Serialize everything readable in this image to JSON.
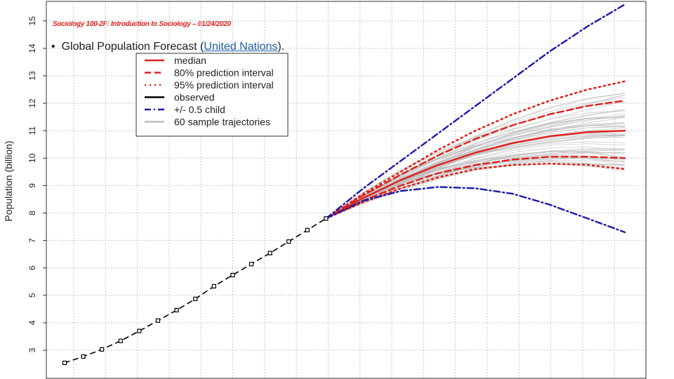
{
  "slide": {
    "header": "Sociology 100-2F: Introduction to Sociology – 01/24/2020",
    "bullet_symbol": "•",
    "bullet_text_before": "Global Population Forecast (",
    "bullet_link": "United Nations",
    "bullet_text_after": ")."
  },
  "chart_data": {
    "type": "line",
    "title": "",
    "xlabel": "",
    "ylabel": "Population (billion)",
    "ylim": [
      2.5,
      15.3
    ],
    "y_ticks": [
      3,
      4,
      5,
      6,
      7,
      8,
      9,
      10,
      11,
      12,
      13,
      14,
      15
    ],
    "x_range": [
      1950,
      2100
    ],
    "grid": true,
    "legend_position": "top-left",
    "legend": [
      {
        "label": "median",
        "color": "#e0201b",
        "style": "solid"
      },
      {
        "label": "80% prediction interval",
        "color": "#e0201b",
        "style": "dashed"
      },
      {
        "label": "95% prediction interval",
        "color": "#e0201b",
        "style": "dotted"
      },
      {
        "label": "observed",
        "color": "#000000",
        "style": "solid"
      },
      {
        "label": "+/- 0.5 child",
        "color": "#1a1aa8",
        "style": "dashdot"
      },
      {
        "label": "60 sample trajectories",
        "color": "#bbbbbb",
        "style": "solid"
      }
    ],
    "series": [
      {
        "name": "observed",
        "color": "#000000",
        "style": "dashed-markers",
        "x": [
          1950,
          1955,
          1960,
          1965,
          1970,
          1975,
          1980,
          1985,
          1990,
          1995,
          2000,
          2005,
          2010,
          2015,
          2020
        ],
        "y": [
          2.54,
          2.77,
          3.03,
          3.34,
          3.7,
          4.08,
          4.46,
          4.87,
          5.33,
          5.74,
          6.14,
          6.54,
          6.96,
          7.38,
          7.8
        ]
      },
      {
        "name": "median",
        "color": "#e0201b",
        "style": "solid",
        "x": [
          2020,
          2030,
          2040,
          2050,
          2060,
          2070,
          2080,
          2090,
          2100
        ],
        "y": [
          7.8,
          8.55,
          9.2,
          9.75,
          10.2,
          10.55,
          10.8,
          10.95,
          11.0
        ]
      },
      {
        "name": "80% upper",
        "color": "#e0201b",
        "style": "dashed",
        "x": [
          2020,
          2030,
          2040,
          2050,
          2060,
          2070,
          2080,
          2090,
          2100
        ],
        "y": [
          7.8,
          8.65,
          9.4,
          10.1,
          10.7,
          11.2,
          11.6,
          11.9,
          12.1
        ]
      },
      {
        "name": "80% lower",
        "color": "#e0201b",
        "style": "dashed",
        "x": [
          2020,
          2030,
          2040,
          2050,
          2060,
          2070,
          2080,
          2090,
          2100
        ],
        "y": [
          7.8,
          8.45,
          9.0,
          9.45,
          9.75,
          9.95,
          10.05,
          10.05,
          10.0
        ]
      },
      {
        "name": "95% upper",
        "color": "#e0201b",
        "style": "dotted",
        "x": [
          2020,
          2030,
          2040,
          2050,
          2060,
          2070,
          2080,
          2090,
          2100
        ],
        "y": [
          7.8,
          8.7,
          9.5,
          10.3,
          11.0,
          11.6,
          12.1,
          12.5,
          12.8
        ]
      },
      {
        "name": "95% lower",
        "color": "#e0201b",
        "style": "dotted",
        "x": [
          2020,
          2030,
          2040,
          2050,
          2060,
          2070,
          2080,
          2090,
          2100
        ],
        "y": [
          7.8,
          8.4,
          8.9,
          9.3,
          9.6,
          9.75,
          9.8,
          9.75,
          9.6
        ]
      },
      {
        "name": "+0.5 child",
        "color": "#1a1aa8",
        "style": "dashdot",
        "x": [
          2020,
          2030,
          2040,
          2050,
          2060,
          2070,
          2080,
          2090,
          2100
        ],
        "y": [
          7.8,
          8.9,
          9.9,
          10.9,
          11.9,
          12.9,
          13.9,
          14.8,
          15.6
        ]
      },
      {
        "name": "-0.5 child",
        "color": "#1a1aa8",
        "style": "dashdot",
        "x": [
          2020,
          2030,
          2040,
          2050,
          2060,
          2070,
          2080,
          2090,
          2100
        ],
        "y": [
          7.8,
          8.45,
          8.8,
          8.95,
          8.9,
          8.7,
          8.3,
          7.8,
          7.3
        ]
      }
    ],
    "sample_trajectories": {
      "count": 60,
      "color": "#bbbbbb",
      "x": [
        2020,
        2030,
        2040,
        2050,
        2060,
        2070,
        2080,
        2090,
        2100
      ],
      "median_y": [
        7.8,
        8.55,
        9.2,
        9.75,
        10.2,
        10.55,
        10.8,
        10.95,
        11.0
      ],
      "spread_end": 1.5
    }
  }
}
